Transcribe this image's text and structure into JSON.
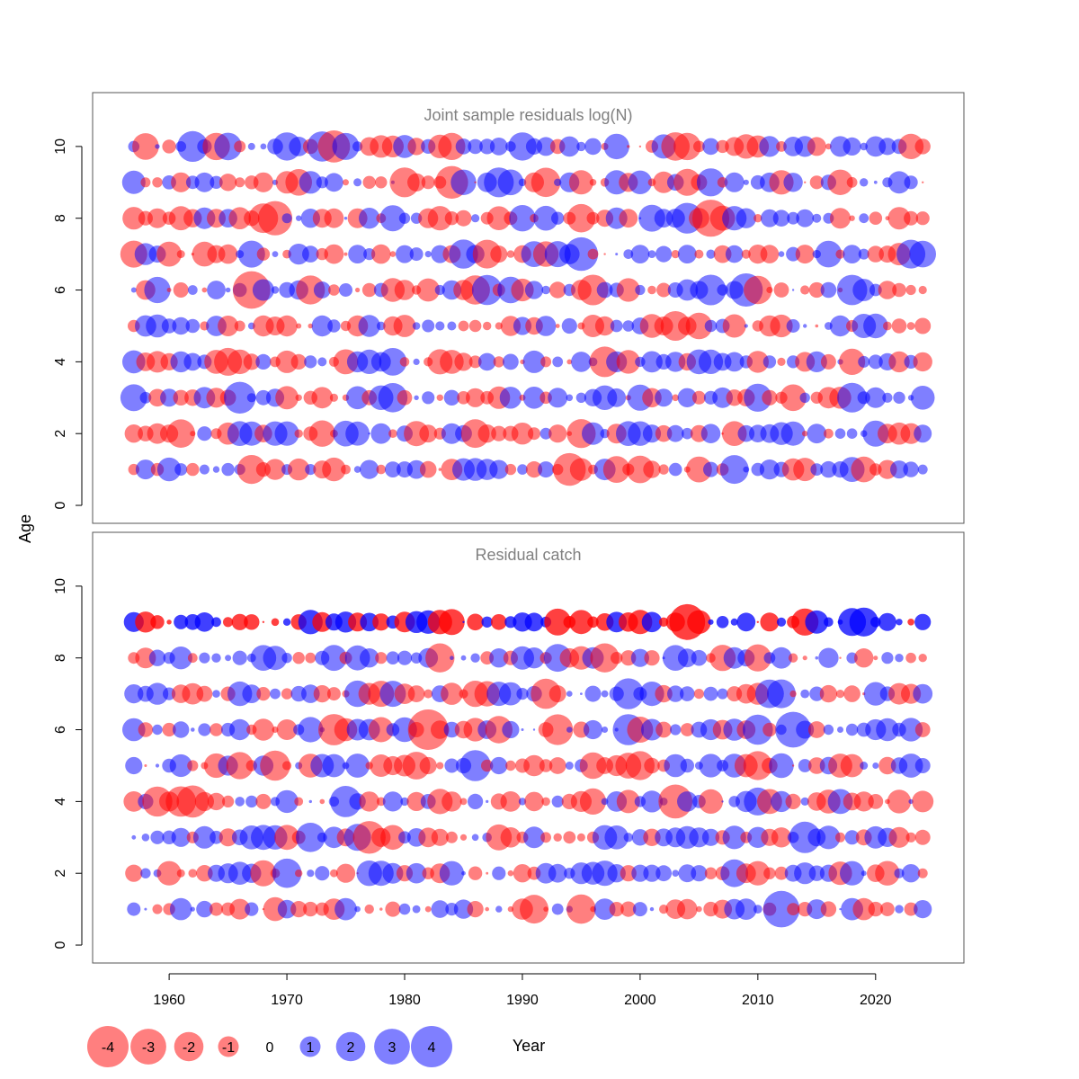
{
  "chart_data": {
    "type": "scatter",
    "subtype": "bubble-residuals",
    "xlabel": "Year",
    "ylabel": "Age",
    "xlim": [
      1953.5,
      2027.5
    ],
    "ylim": [
      -0.5,
      11.5
    ],
    "x_ticks": [
      1960,
      1970,
      1980,
      1990,
      2000,
      2010,
      2020
    ],
    "y_ticks": [
      0,
      2,
      4,
      6,
      8,
      10
    ],
    "years": [
      1957,
      2024
    ],
    "colors": {
      "positive": "#0000ff",
      "negative": "#ff0000",
      "fill_opacity": 0.5,
      "frame": "#555555",
      "title": "#808080"
    },
    "panels": [
      {
        "title": "Joint sample residuals log(N)",
        "ages": [
          1,
          2,
          3,
          4,
          5,
          6,
          7,
          8,
          9,
          10
        ],
        "note": "bubble area proportional to |residual|; red = negative, blue = positive"
      },
      {
        "title": "Residual catch",
        "ages": [
          1,
          2,
          3,
          4,
          5,
          6,
          7,
          8,
          9
        ],
        "note": "bubble area proportional to |residual|; red = negative, blue = positive"
      }
    ],
    "legend": {
      "values": [
        -4,
        -3,
        -2,
        -1,
        0,
        1,
        2,
        3,
        4
      ],
      "labels": [
        "-4",
        "-3",
        "-2",
        "-1",
        "0",
        "1",
        "2",
        "3",
        "4"
      ]
    }
  }
}
